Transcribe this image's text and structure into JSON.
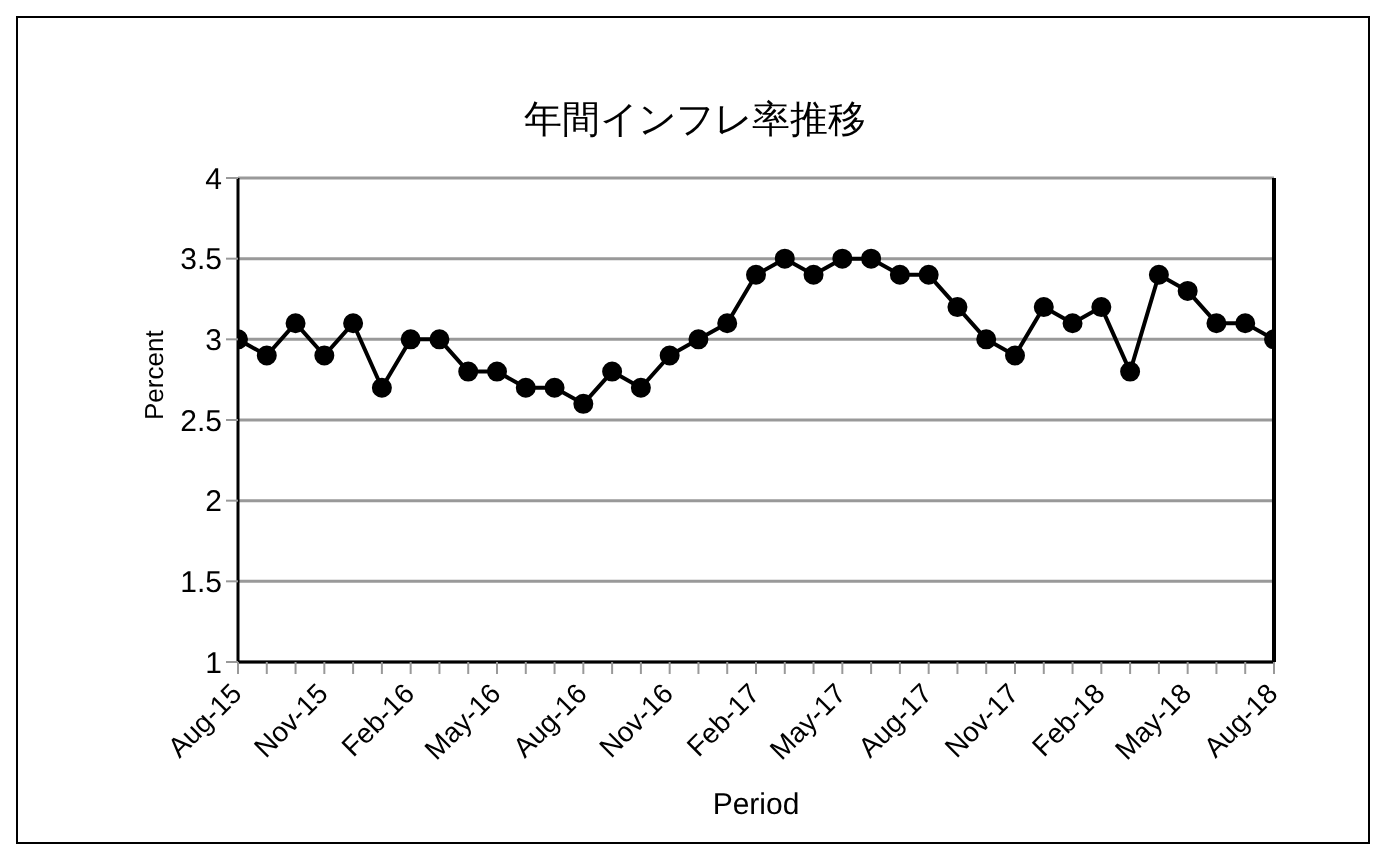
{
  "chart_data": {
    "type": "line",
    "title": "年間インフレ率推移",
    "xlabel": "Period",
    "ylabel": "Percent",
    "categories": [
      "Aug-15",
      null,
      null,
      "Nov-15",
      null,
      null,
      "Feb-16",
      null,
      null,
      "May-16",
      null,
      null,
      "Aug-16",
      null,
      null,
      "Nov-16",
      null,
      null,
      "Feb-17",
      null,
      null,
      "May-17",
      null,
      null,
      "Aug-17",
      null,
      null,
      "Nov-17",
      null,
      null,
      "Feb-18",
      null,
      null,
      "May-18",
      null,
      null,
      "Aug-18"
    ],
    "series": [
      {
        "color": "#000000",
        "values": [
          3.0,
          2.9,
          3.1,
          2.9,
          3.1,
          2.7,
          3.0,
          3.0,
          2.8,
          2.8,
          2.7,
          2.7,
          2.6,
          2.8,
          2.7,
          2.9,
          3.0,
          3.1,
          3.4,
          3.5,
          3.4,
          3.5,
          3.5,
          3.4,
          3.4,
          3.2,
          3.0,
          2.9,
          3.2,
          3.1,
          3.2,
          2.8,
          3.4,
          3.3,
          3.1,
          3.1,
          3.0
        ]
      }
    ],
    "ylim": [
      1,
      4
    ],
    "yticks": [
      1,
      1.5,
      2,
      2.5,
      3,
      3.5,
      4
    ],
    "grid": "y",
    "legend": false,
    "marker": "circle",
    "line_style": "solid"
  }
}
